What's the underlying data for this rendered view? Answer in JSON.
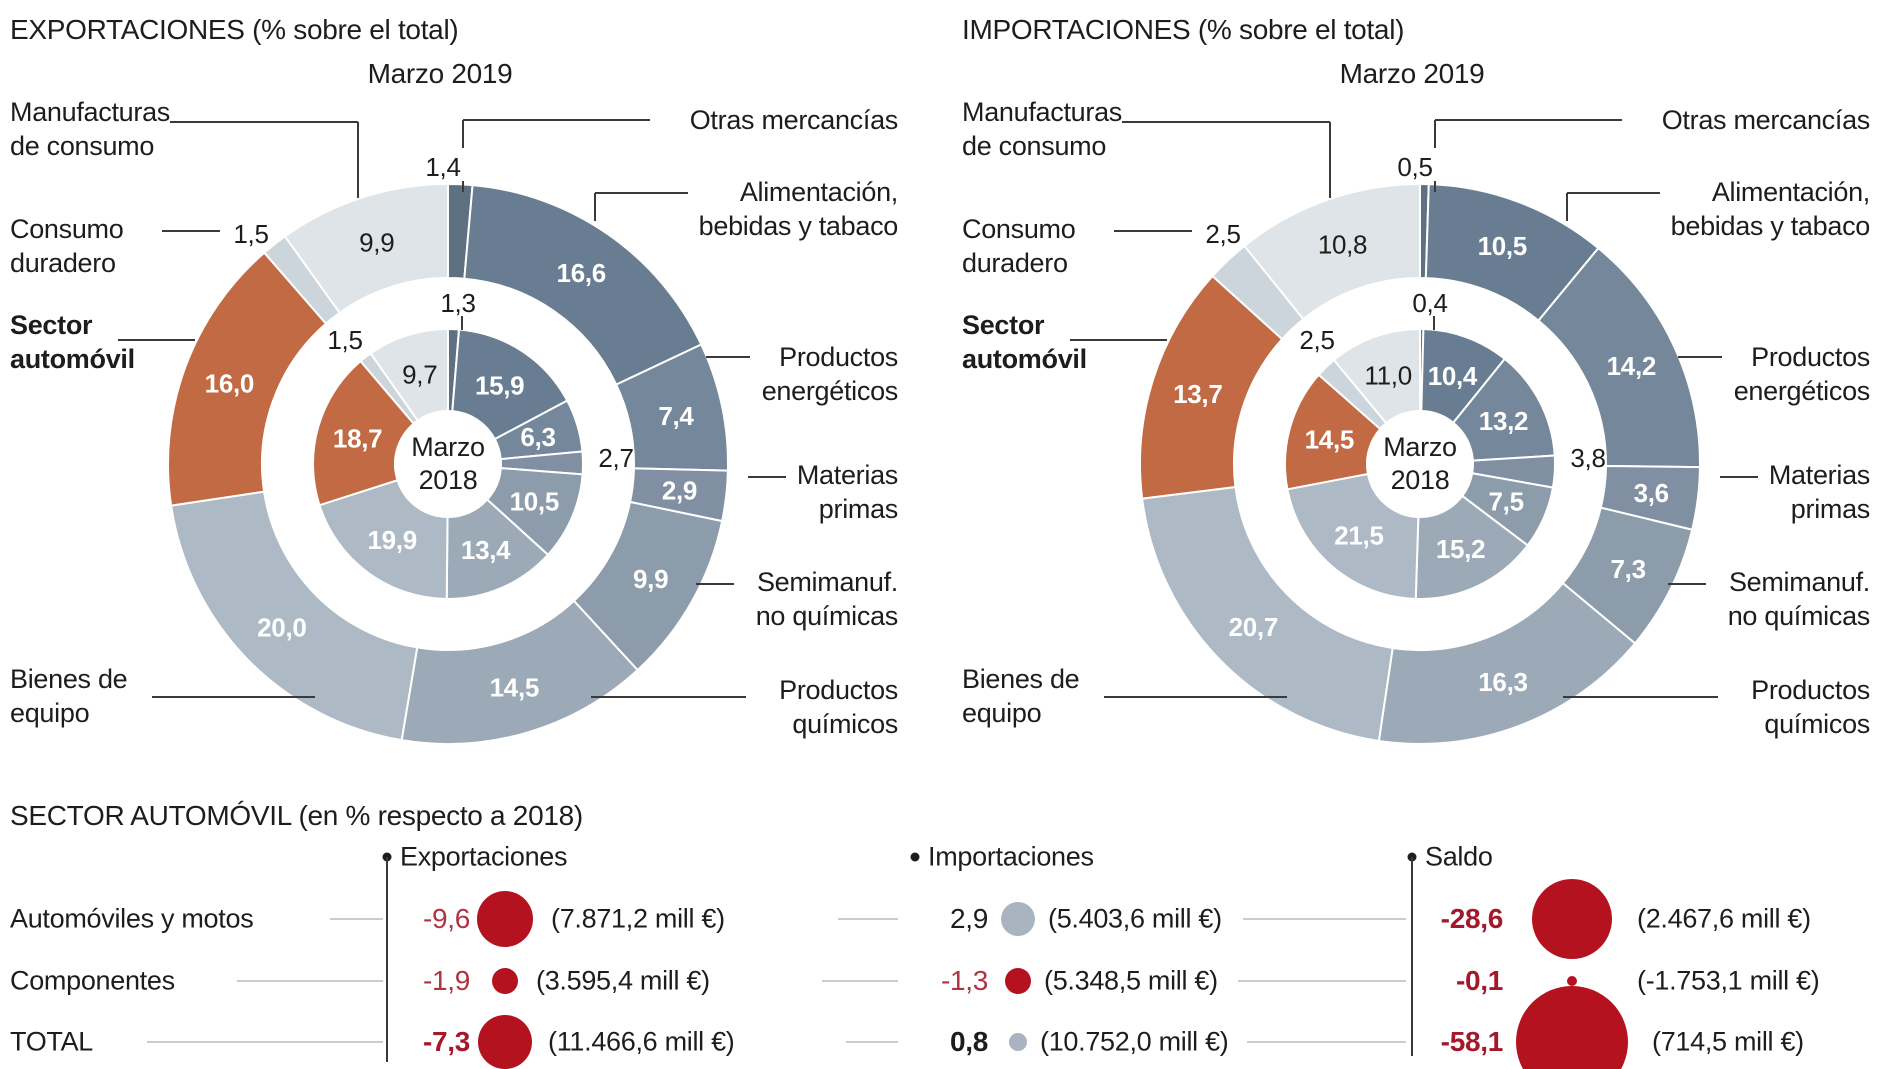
{
  "chart_data": [
    {
      "type": "pie",
      "variant": "double-donut",
      "title": "EXPORTACIONES (% sobre el total)",
      "rings": [
        {
          "name": "Marzo 2019",
          "position": "outer",
          "values": [
            1.4,
            16.6,
            7.4,
            2.9,
            9.9,
            14.5,
            20.0,
            16.0,
            1.5,
            9.9
          ]
        },
        {
          "name": "Marzo 2018",
          "position": "inner",
          "values": [
            1.3,
            15.9,
            6.3,
            2.7,
            10.5,
            13.4,
            19.9,
            18.7,
            1.5,
            9.7
          ]
        }
      ]
    },
    {
      "type": "pie",
      "variant": "double-donut",
      "title": "IMPORTACIONES (% sobre el total)",
      "rings": [
        {
          "name": "Marzo 2019",
          "position": "outer",
          "values": [
            0.5,
            10.5,
            14.2,
            3.6,
            7.3,
            16.3,
            20.7,
            13.7,
            2.5,
            10.8
          ]
        },
        {
          "name": "Marzo 2018",
          "position": "inner",
          "values": [
            0.4,
            10.4,
            13.2,
            3.8,
            7.5,
            15.2,
            21.5,
            14.5,
            2.5,
            11.0
          ]
        }
      ]
    },
    {
      "type": "table",
      "title": "SECTOR AUTOMÓVIL (en % respecto a 2018)",
      "columns": [
        "Exportaciones",
        "Importaciones",
        "Saldo"
      ],
      "rows": [
        {
          "label": "Automóviles y motos",
          "exportaciones": {
            "pct": "-9,6",
            "amount": "(7.871,2 mill €)",
            "dot_r": 28,
            "dot_color": "red"
          },
          "importaciones": {
            "pct": "2,9",
            "amount": "(5.403,6 mill €)",
            "dot_r": 17,
            "dot_color": "grey"
          },
          "saldo": {
            "pct": "-28,6",
            "amount": "(2.467,6 mill €)",
            "dot_r": 40,
            "dot_color": "red"
          }
        },
        {
          "label": "Componentes",
          "exportaciones": {
            "pct": "-1,9",
            "amount": "(3.595,4 mill €)",
            "dot_r": 13,
            "dot_color": "red"
          },
          "importaciones": {
            "pct": "-1,3",
            "amount": "(5.348,5 mill €)",
            "dot_r": 13,
            "dot_color": "red"
          },
          "saldo": {
            "pct": "-0,1",
            "amount": "(-1.753,1 mill €)",
            "dot_r": 5,
            "dot_color": "red"
          }
        },
        {
          "label": "TOTAL",
          "exportaciones": {
            "pct": "-7,3",
            "amount": "(11.466,6 mill €)",
            "dot_r": 27,
            "dot_color": "red"
          },
          "importaciones": {
            "pct": "0,8",
            "amount": "(10.752,0 mill €)",
            "dot_r": 9,
            "dot_color": "grey"
          },
          "saldo": {
            "pct": "-58,1",
            "amount": "(714,5 mill €)",
            "dot_r": 56,
            "dot_color": "red"
          }
        }
      ]
    }
  ],
  "categories": [
    "Otras mercancías",
    "Alimentación,\nbebidas y tabaco",
    "Productos\nenergéticos",
    "Materias\nprimas",
    "Semimanuf.\nno químicas",
    "Productos\nquímicos",
    "Bienes de\nequipo",
    "Sector\nautomóvil",
    "Consumo\nduradero",
    "Manufacturas\nde consumo"
  ],
  "colors": {
    "slices": [
      "#5e7183",
      "#687d91",
      "#75879a",
      "#8090a2",
      "#8c9cab",
      "#9caab8",
      "#adb9c4",
      "#c16a44",
      "#ccd5db",
      "#dfe4e8"
    ],
    "red": "#b5121f",
    "grey": "#a9b4c0",
    "leader_dark": "#3a3a3a",
    "leader_light": "#c9ccd0"
  }
}
